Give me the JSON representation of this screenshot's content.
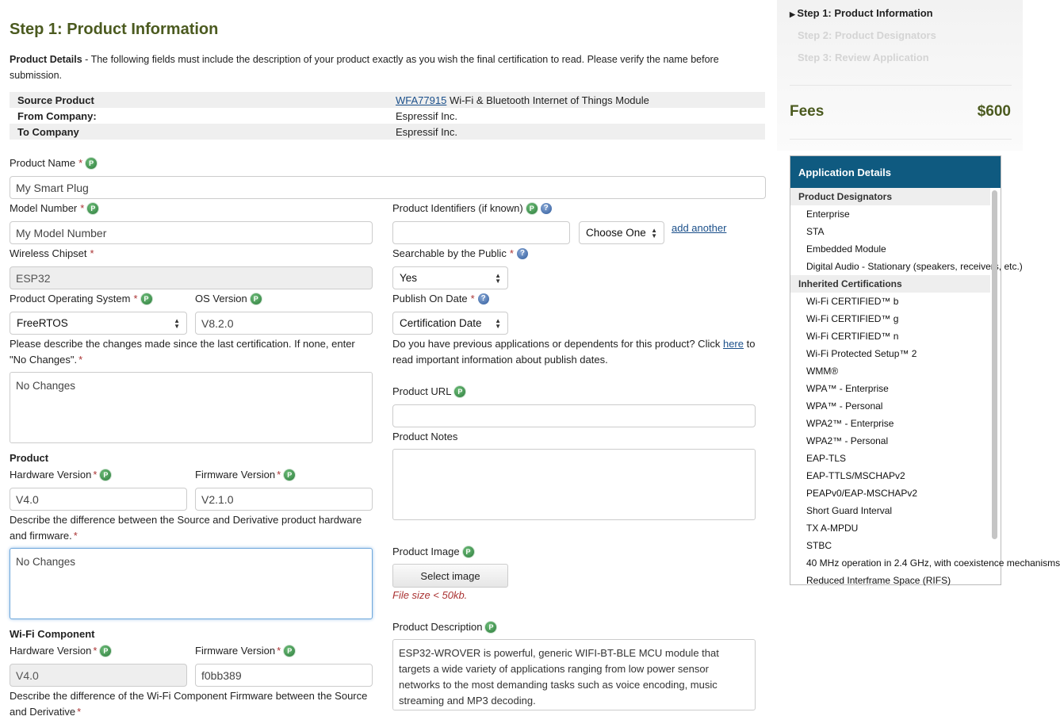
{
  "title": "Step 1: Product Information",
  "intro": {
    "bold": "Product Details",
    "text": " - The following fields must include the description of your product exactly as you wish the final certification to read. Please verify the name before submission."
  },
  "summary": [
    {
      "label": "Source Product",
      "link": "WFA77915",
      "value": " Wi-Fi & Bluetooth Internet of Things Module"
    },
    {
      "label": "From Company:",
      "value": "Espressif Inc."
    },
    {
      "label": "To Company",
      "value": "Espressif Inc."
    }
  ],
  "form": {
    "product_name": {
      "label": "Product Name",
      "value": "My Smart Plug"
    },
    "model_number": {
      "label": "Model Number",
      "value": "My Model Number"
    },
    "wireless_chipset": {
      "label": "Wireless Chipset",
      "value": "ESP32"
    },
    "os": {
      "label": "Product Operating System",
      "value": "FreeRTOS"
    },
    "os_version": {
      "label": "OS Version",
      "value": "V8.2.0"
    },
    "changes": {
      "label": "Please describe the changes made since the last certification. If none, enter \"No Changes\".",
      "value": "No Changes"
    },
    "product_section": "Product",
    "hw_version": {
      "label": "Hardware Version",
      "value": "V4.0"
    },
    "fw_version": {
      "label": "Firmware Version",
      "value": "V2.1.0"
    },
    "diff": {
      "label": "Describe the difference between the Source and Derivative product hardware and firmware.",
      "value": "No Changes"
    },
    "wifi_section": "Wi-Fi Component",
    "wifi_hw_version": {
      "label": "Hardware Version",
      "value": "V4.0"
    },
    "wifi_fw_version": {
      "label": "Firmware Version",
      "value": "f0bb389"
    },
    "wifi_diff": {
      "label": "Describe the difference of the Wi-Fi Component Firmware between the Source and Derivative"
    },
    "identifiers": {
      "label": "Product Identifiers (if known)",
      "value": "",
      "select": "Choose One",
      "add": "add another"
    },
    "searchable": {
      "label": "Searchable by the Public",
      "value": "Yes"
    },
    "publish": {
      "label": "Publish On Date",
      "value": "Certification Date"
    },
    "publish_note": {
      "pre": "Do you have previous applications or dependents for this product? Click ",
      "link": "here",
      "post": " to read important information about publish dates."
    },
    "url": {
      "label": "Product URL",
      "value": ""
    },
    "notes": {
      "label": "Product Notes",
      "value": ""
    },
    "image": {
      "label": "Product Image",
      "button": "Select image",
      "hint": "File size < 50kb."
    },
    "description": {
      "label": "Product Description",
      "value": "ESP32-WROVER is powerful, generic WIFI-BT-BLE MCU module that targets a wide variety of applications ranging from low power sensor networks to the most demanding tasks such as voice encoding, music streaming and MP3 decoding."
    }
  },
  "steps": [
    "Step 1: Product Information",
    "Step 2: Product Designators",
    "Step 3: Review Application"
  ],
  "fees": {
    "label": "Fees",
    "value": "$600"
  },
  "details": {
    "title": "Application Details",
    "designators_header": "Product Designators",
    "designators": [
      "Enterprise",
      "STA",
      "Embedded Module",
      "Digital Audio - Stationary (speakers, receivers, etc.)"
    ],
    "certs_header": "Inherited Certifications",
    "certs": [
      "Wi-Fi CERTIFIED™ b",
      "Wi-Fi CERTIFIED™ g",
      "Wi-Fi CERTIFIED™ n",
      "Wi-Fi Protected Setup™ 2",
      "WMM®",
      "WPA™ - Enterprise",
      "WPA™ - Personal",
      "WPA2™ - Enterprise",
      "WPA2™ - Personal",
      "EAP-TLS",
      "EAP-TTLS/MSCHAPv2",
      "PEAPv0/EAP-MSCHAPv2",
      "Short Guard Interval",
      "TX A-MPDU",
      "STBC",
      "40 MHz operation in 2.4 GHz, with coexistence mechanisms",
      "Reduced Interframe Space (RIFS)"
    ]
  },
  "colors": {
    "title": "#4b5a1f",
    "header": "#0f5a80",
    "required": "#a33",
    "link": "#1a4f8a"
  }
}
